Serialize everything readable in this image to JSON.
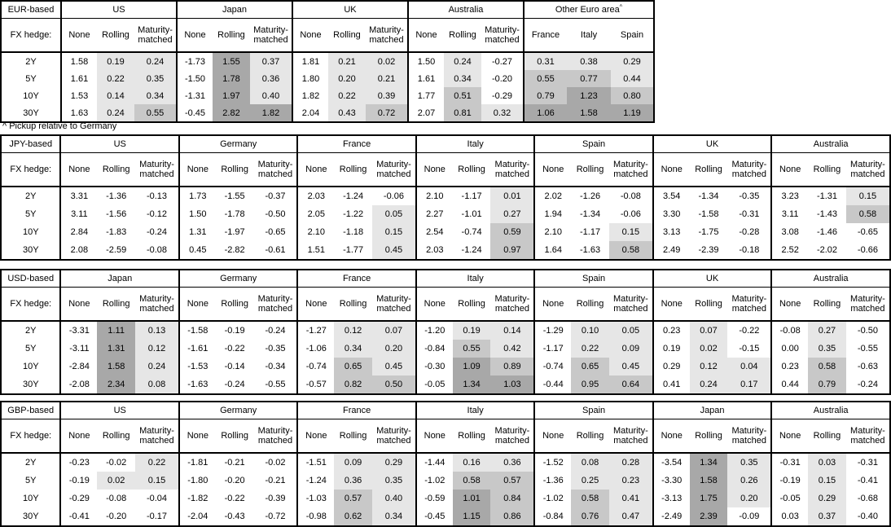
{
  "fx_hedge_label": "FX hedge:",
  "row_labels": [
    "2Y",
    "5Y",
    "10Y",
    "30Y"
  ],
  "standard_columns": [
    "None",
    "Rolling",
    "Maturity-matched"
  ],
  "footnote": "^ Pickup relative to Germany",
  "shading": {
    "light": "#e6e6e6",
    "medium": "#c8c8c8",
    "dark": "#a8a8a8",
    "rule": "cell value v in shaded columns: v<0 white, 0<=v<0.5 light, 0.5<=v<1 medium, v>=1 dark",
    "thresholds": [
      0,
      0.5,
      1.0
    ]
  },
  "tables": [
    {
      "base": "EUR-based",
      "groups": [
        {
          "name": "US",
          "cols": [
            "None",
            "Rolling",
            "Maturity-matched"
          ],
          "shade_cols": [
            1,
            2
          ],
          "rows": [
            [
              "1.58",
              "0.19",
              "0.24"
            ],
            [
              "1.61",
              "0.22",
              "0.35"
            ],
            [
              "1.53",
              "0.14",
              "0.34"
            ],
            [
              "1.63",
              "0.24",
              "0.55"
            ]
          ]
        },
        {
          "name": "Japan",
          "cols": [
            "None",
            "Rolling",
            "Maturity-matched"
          ],
          "shade_cols": [
            1,
            2
          ],
          "rows": [
            [
              "-1.73",
              "1.55",
              "0.37"
            ],
            [
              "-1.50",
              "1.78",
              "0.36"
            ],
            [
              "-1.31",
              "1.97",
              "0.40"
            ],
            [
              "-0.45",
              "2.82",
              "1.82"
            ]
          ]
        },
        {
          "name": "UK",
          "cols": [
            "None",
            "Rolling",
            "Maturity-matched"
          ],
          "shade_cols": [
            1,
            2
          ],
          "rows": [
            [
              "1.81",
              "0.21",
              "0.02"
            ],
            [
              "1.80",
              "0.20",
              "0.21"
            ],
            [
              "1.82",
              "0.22",
              "0.39"
            ],
            [
              "2.04",
              "0.43",
              "0.72"
            ]
          ]
        },
        {
          "name": "Australia",
          "cols": [
            "None",
            "Rolling",
            "Maturity-matched"
          ],
          "shade_cols": [
            1,
            2
          ],
          "rows": [
            [
              "1.50",
              "0.24",
              "-0.27"
            ],
            [
              "1.61",
              "0.34",
              "-0.20"
            ],
            [
              "1.77",
              "0.51",
              "-0.29"
            ],
            [
              "2.07",
              "0.81",
              "0.32"
            ]
          ]
        },
        {
          "name": "Other Euro area",
          "sup": "^",
          "cols": [
            "France",
            "Italy",
            "Spain"
          ],
          "shade_cols": [
            0,
            1,
            2
          ],
          "rows": [
            [
              "0.31",
              "0.38",
              "0.29"
            ],
            [
              "0.55",
              "0.77",
              "0.44"
            ],
            [
              "0.79",
              "1.23",
              "0.80"
            ],
            [
              "1.06",
              "1.58",
              "1.19"
            ]
          ]
        }
      ]
    },
    {
      "base": "JPY-based",
      "groups": [
        {
          "name": "US",
          "cols": [
            "None",
            "Rolling",
            "Maturity-matched"
          ],
          "shade_cols": [
            1,
            2
          ],
          "rows": [
            [
              "3.31",
              "-1.36",
              "-0.13"
            ],
            [
              "3.11",
              "-1.56",
              "-0.12"
            ],
            [
              "2.84",
              "-1.83",
              "-0.24"
            ],
            [
              "2.08",
              "-2.59",
              "-0.08"
            ]
          ]
        },
        {
          "name": "Germany",
          "cols": [
            "None",
            "Rolling",
            "Maturity-matched"
          ],
          "shade_cols": [
            1,
            2
          ],
          "rows": [
            [
              "1.73",
              "-1.55",
              "-0.37"
            ],
            [
              "1.50",
              "-1.78",
              "-0.50"
            ],
            [
              "1.31",
              "-1.97",
              "-0.65"
            ],
            [
              "0.45",
              "-2.82",
              "-0.61"
            ]
          ]
        },
        {
          "name": "France",
          "cols": [
            "None",
            "Rolling",
            "Maturity-matched"
          ],
          "shade_cols": [
            1,
            2
          ],
          "rows": [
            [
              "2.03",
              "-1.24",
              "-0.06"
            ],
            [
              "2.05",
              "-1.22",
              "0.05"
            ],
            [
              "2.10",
              "-1.18",
              "0.15"
            ],
            [
              "1.51",
              "-1.77",
              "0.45"
            ]
          ]
        },
        {
          "name": "Italy",
          "cols": [
            "None",
            "Rolling",
            "Maturity-matched"
          ],
          "shade_cols": [
            1,
            2
          ],
          "rows": [
            [
              "2.10",
              "-1.17",
              "0.01"
            ],
            [
              "2.27",
              "-1.01",
              "0.27"
            ],
            [
              "2.54",
              "-0.74",
              "0.59"
            ],
            [
              "2.03",
              "-1.24",
              "0.97"
            ]
          ]
        },
        {
          "name": "Spain",
          "cols": [
            "None",
            "Rolling",
            "Maturity-matched"
          ],
          "shade_cols": [
            1,
            2
          ],
          "rows": [
            [
              "2.02",
              "-1.26",
              "-0.08"
            ],
            [
              "1.94",
              "-1.34",
              "-0.06"
            ],
            [
              "2.10",
              "-1.17",
              "0.15"
            ],
            [
              "1.64",
              "-1.63",
              "0.58"
            ]
          ]
        },
        {
          "name": "UK",
          "cols": [
            "None",
            "Rolling",
            "Maturity-matched"
          ],
          "shade_cols": [
            1,
            2
          ],
          "rows": [
            [
              "3.54",
              "-1.34",
              "-0.35"
            ],
            [
              "3.30",
              "-1.58",
              "-0.31"
            ],
            [
              "3.13",
              "-1.75",
              "-0.28"
            ],
            [
              "2.49",
              "-2.39",
              "-0.18"
            ]
          ]
        },
        {
          "name": "Australia",
          "cols": [
            "None",
            "Rolling",
            "Maturity-matched"
          ],
          "shade_cols": [
            1,
            2
          ],
          "rows": [
            [
              "3.23",
              "-1.31",
              "0.15"
            ],
            [
              "3.11",
              "-1.43",
              "0.58"
            ],
            [
              "3.08",
              "-1.46",
              "-0.65"
            ],
            [
              "2.52",
              "-2.02",
              "-0.66"
            ]
          ]
        }
      ]
    },
    {
      "base": "USD-based",
      "groups": [
        {
          "name": "Japan",
          "cols": [
            "None",
            "Rolling",
            "Maturity-matched"
          ],
          "shade_cols": [
            1,
            2
          ],
          "rows": [
            [
              "-3.31",
              "1.11",
              "0.13"
            ],
            [
              "-3.11",
              "1.31",
              "0.12"
            ],
            [
              "-2.84",
              "1.58",
              "0.24"
            ],
            [
              "-2.08",
              "2.34",
              "0.08"
            ]
          ]
        },
        {
          "name": "Germany",
          "cols": [
            "None",
            "Rolling",
            "Maturity-matched"
          ],
          "shade_cols": [
            1,
            2
          ],
          "rows": [
            [
              "-1.58",
              "-0.19",
              "-0.24"
            ],
            [
              "-1.61",
              "-0.22",
              "-0.35"
            ],
            [
              "-1.53",
              "-0.14",
              "-0.34"
            ],
            [
              "-1.63",
              "-0.24",
              "-0.55"
            ]
          ]
        },
        {
          "name": "France",
          "cols": [
            "None",
            "Rolling",
            "Maturity-matched"
          ],
          "shade_cols": [
            1,
            2
          ],
          "rows": [
            [
              "-1.27",
              "0.12",
              "0.07"
            ],
            [
              "-1.06",
              "0.34",
              "0.20"
            ],
            [
              "-0.74",
              "0.65",
              "0.45"
            ],
            [
              "-0.57",
              "0.82",
              "0.50"
            ]
          ]
        },
        {
          "name": "Italy",
          "cols": [
            "None",
            "Rolling",
            "Maturity-matched"
          ],
          "shade_cols": [
            1,
            2
          ],
          "rows": [
            [
              "-1.20",
              "0.19",
              "0.14"
            ],
            [
              "-0.84",
              "0.55",
              "0.42"
            ],
            [
              "-0.30",
              "1.09",
              "0.89"
            ],
            [
              "-0.05",
              "1.34",
              "1.03"
            ]
          ]
        },
        {
          "name": "Spain",
          "cols": [
            "None",
            "Rolling",
            "Maturity-matched"
          ],
          "shade_cols": [
            1,
            2
          ],
          "rows": [
            [
              "-1.29",
              "0.10",
              "0.05"
            ],
            [
              "-1.17",
              "0.22",
              "0.09"
            ],
            [
              "-0.74",
              "0.65",
              "0.45"
            ],
            [
              "-0.44",
              "0.95",
              "0.64"
            ]
          ]
        },
        {
          "name": "UK",
          "cols": [
            "None",
            "Rolling",
            "Maturity-matched"
          ],
          "shade_cols": [
            1,
            2
          ],
          "rows": [
            [
              "0.23",
              "0.07",
              "-0.22"
            ],
            [
              "0.19",
              "0.02",
              "-0.15"
            ],
            [
              "0.29",
              "0.12",
              "0.04"
            ],
            [
              "0.41",
              "0.24",
              "0.17"
            ]
          ]
        },
        {
          "name": "Australia",
          "cols": [
            "None",
            "Rolling",
            "Maturity-matched"
          ],
          "shade_cols": [
            1,
            2
          ],
          "rows": [
            [
              "-0.08",
              "0.27",
              "-0.50"
            ],
            [
              "0.00",
              "0.35",
              "-0.55"
            ],
            [
              "0.23",
              "0.58",
              "-0.63"
            ],
            [
              "0.44",
              "0.79",
              "-0.24"
            ]
          ]
        }
      ]
    },
    {
      "base": "GBP-based",
      "groups": [
        {
          "name": "US",
          "cols": [
            "None",
            "Rolling",
            "Maturity-matched"
          ],
          "shade_cols": [
            1,
            2
          ],
          "rows": [
            [
              "-0.23",
              "-0.02",
              "0.22"
            ],
            [
              "-0.19",
              "0.02",
              "0.15"
            ],
            [
              "-0.29",
              "-0.08",
              "-0.04"
            ],
            [
              "-0.41",
              "-0.20",
              "-0.17"
            ]
          ]
        },
        {
          "name": "Germany",
          "cols": [
            "None",
            "Rolling",
            "Maturity-matched"
          ],
          "shade_cols": [
            1,
            2
          ],
          "rows": [
            [
              "-1.81",
              "-0.21",
              "-0.02"
            ],
            [
              "-1.80",
              "-0.20",
              "-0.21"
            ],
            [
              "-1.82",
              "-0.22",
              "-0.39"
            ],
            [
              "-2.04",
              "-0.43",
              "-0.72"
            ]
          ]
        },
        {
          "name": "France",
          "cols": [
            "None",
            "Rolling",
            "Maturity-matched"
          ],
          "shade_cols": [
            1,
            2
          ],
          "rows": [
            [
              "-1.51",
              "0.09",
              "0.29"
            ],
            [
              "-1.24",
              "0.36",
              "0.35"
            ],
            [
              "-1.03",
              "0.57",
              "0.40"
            ],
            [
              "-0.98",
              "0.62",
              "0.34"
            ]
          ]
        },
        {
          "name": "Italy",
          "cols": [
            "None",
            "Rolling",
            "Maturity-matched"
          ],
          "shade_cols": [
            1,
            2
          ],
          "rows": [
            [
              "-1.44",
              "0.16",
              "0.36"
            ],
            [
              "-1.02",
              "0.58",
              "0.57"
            ],
            [
              "-0.59",
              "1.01",
              "0.84"
            ],
            [
              "-0.45",
              "1.15",
              "0.86"
            ]
          ]
        },
        {
          "name": "Spain",
          "cols": [
            "None",
            "Rolling",
            "Maturity-matched"
          ],
          "shade_cols": [
            1,
            2
          ],
          "rows": [
            [
              "-1.52",
              "0.08",
              "0.28"
            ],
            [
              "-1.36",
              "0.25",
              "0.23"
            ],
            [
              "-1.02",
              "0.58",
              "0.41"
            ],
            [
              "-0.84",
              "0.76",
              "0.47"
            ]
          ]
        },
        {
          "name": "Japan",
          "cols": [
            "None",
            "Rolling",
            "Maturity-matched"
          ],
          "shade_cols": [
            1,
            2
          ],
          "rows": [
            [
              "-3.54",
              "1.34",
              "0.35"
            ],
            [
              "-3.30",
              "1.58",
              "0.26"
            ],
            [
              "-3.13",
              "1.75",
              "0.20"
            ],
            [
              "-2.49",
              "2.39",
              "-0.09"
            ]
          ]
        },
        {
          "name": "Australia",
          "cols": [
            "None",
            "Rolling",
            "Maturity-matched"
          ],
          "shade_cols": [
            1,
            2
          ],
          "rows": [
            [
              "-0.31",
              "0.03",
              "-0.31"
            ],
            [
              "-0.19",
              "0.15",
              "-0.41"
            ],
            [
              "-0.05",
              "0.29",
              "-0.68"
            ],
            [
              "0.03",
              "0.37",
              "-0.40"
            ]
          ]
        }
      ]
    }
  ]
}
